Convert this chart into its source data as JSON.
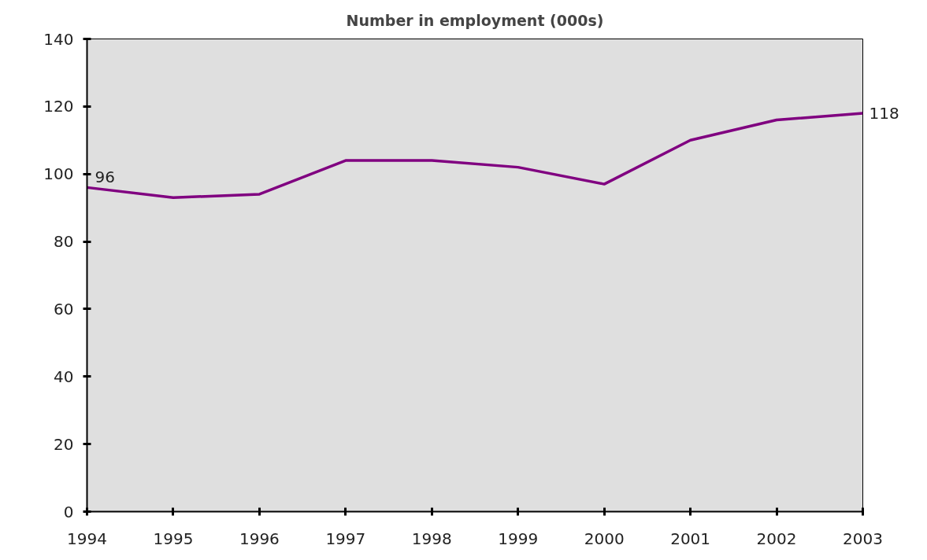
{
  "chart_data": {
    "type": "line",
    "title": "Number in employment (000s)",
    "categories": [
      "1994",
      "1995",
      "1996",
      "1997",
      "1998",
      "1999",
      "2000",
      "2001",
      "2002",
      "2003"
    ],
    "series": [
      {
        "color": "#800080",
        "values": [
          96,
          93,
          94,
          104,
          104,
          102,
          97,
          110,
          116,
          118
        ],
        "value_labels": [
          "96",
          null,
          null,
          null,
          null,
          null,
          null,
          null,
          null,
          "118"
        ]
      }
    ],
    "ylim": [
      0,
      140
    ],
    "yticks": [
      0,
      20,
      40,
      60,
      80,
      100,
      120,
      140
    ],
    "grid": false,
    "marker": "none",
    "line_style": "solid"
  }
}
